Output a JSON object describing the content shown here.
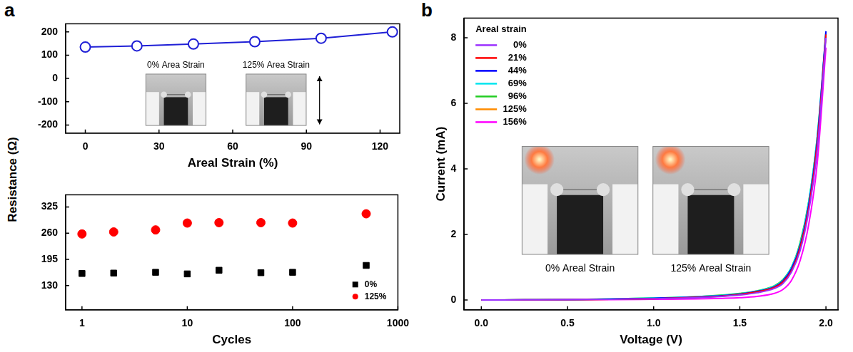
{
  "chart_data": [
    {
      "panel": "a",
      "type": "line",
      "xlabel": "Areal Strain (%)",
      "ylabel": "Resistance (Ω)",
      "x": [
        0,
        21,
        44,
        69,
        96,
        125
      ],
      "values": [
        135,
        140,
        148,
        158,
        173,
        200
      ],
      "color": "#1f1fd6",
      "marker": "open_circle",
      "annotations": [
        "0% Area Strain",
        "125% Area Strain"
      ],
      "xlim": [
        -8,
        128
      ],
      "xticks": [
        0,
        30,
        60,
        90,
        120
      ],
      "ylim": [
        -235,
        235
      ],
      "yticks": [
        -200,
        -100,
        0,
        100,
        200
      ],
      "grid": false
    },
    {
      "type": "scatter",
      "xlabel": "Cycles",
      "log": "x",
      "x": [
        1,
        2,
        5,
        10,
        20,
        50,
        100,
        500
      ],
      "series": [
        {
          "name": "0%",
          "color": "#000000",
          "marker": "square",
          "values": [
            160,
            161,
            163,
            159,
            168,
            162,
            163,
            180
          ]
        },
        {
          "name": "125%",
          "color": "#ff0000",
          "marker": "circle",
          "values": [
            258,
            263,
            268,
            285,
            286,
            286,
            285,
            308
          ]
        }
      ],
      "xlim": [
        0.7,
        1000
      ],
      "xticks": [
        1,
        10,
        100,
        1000
      ],
      "ylim": [
        70,
        355
      ],
      "yticks": [
        130,
        195,
        260,
        325
      ],
      "legend": "lower right",
      "grid": false
    },
    {
      "panel": "b",
      "type": "line",
      "xlabel": "Voltage (V)",
      "ylabel": "Current (mA)",
      "legend_title": "Areal strain",
      "x": [
        0,
        0.25,
        0.5,
        0.75,
        1,
        1.25,
        1.4,
        1.5,
        1.6,
        1.7,
        1.75,
        1.8,
        1.85,
        1.9,
        1.95,
        2
      ],
      "series": [
        {
          "name": "0%",
          "color": "#9b30ff",
          "values": [
            0,
            0.005,
            0.01,
            0.02,
            0.04,
            0.07,
            0.11,
            0.15,
            0.22,
            0.35,
            0.5,
            0.85,
            1.5,
            2.7,
            4.6,
            8.0
          ]
        },
        {
          "name": "21%",
          "color": "#ff0000",
          "values": [
            0,
            0.005,
            0.01,
            0.02,
            0.04,
            0.08,
            0.12,
            0.17,
            0.25,
            0.38,
            0.55,
            0.9,
            1.6,
            2.8,
            4.8,
            8.1
          ]
        },
        {
          "name": "44%",
          "color": "#0000ff",
          "values": [
            0,
            0.005,
            0.01,
            0.025,
            0.05,
            0.09,
            0.13,
            0.18,
            0.26,
            0.4,
            0.58,
            0.95,
            1.65,
            2.9,
            4.9,
            8.2
          ]
        },
        {
          "name": "69%",
          "color": "#00e5ee",
          "values": [
            0,
            0.005,
            0.01,
            0.03,
            0.06,
            0.1,
            0.14,
            0.19,
            0.27,
            0.42,
            0.6,
            1.0,
            1.7,
            3.0,
            5.0,
            8.2
          ]
        },
        {
          "name": "96%",
          "color": "#22cc22",
          "values": [
            0,
            0.005,
            0.015,
            0.03,
            0.06,
            0.1,
            0.15,
            0.2,
            0.28,
            0.43,
            0.62,
            1.0,
            1.75,
            3.0,
            5.0,
            8.1
          ]
        },
        {
          "name": "125%",
          "color": "#ff8c00",
          "values": [
            0,
            0.005,
            0.01,
            0.02,
            0.05,
            0.08,
            0.12,
            0.16,
            0.24,
            0.37,
            0.54,
            0.9,
            1.6,
            2.85,
            4.8,
            8.1
          ]
        },
        {
          "name": "156%",
          "color": "#ff00ff",
          "values": [
            0,
            0.002,
            0.005,
            0.01,
            0.02,
            0.03,
            0.05,
            0.07,
            0.11,
            0.2,
            0.32,
            0.6,
            1.2,
            2.3,
            4.2,
            7.7
          ]
        }
      ],
      "annotations": [
        "0% Areal Strain",
        "125% Areal Strain"
      ],
      "xlim": [
        -0.1,
        2.07
      ],
      "xticks": [
        {
          "value": 0,
          "label": "0.0"
        },
        {
          "value": 0.5,
          "label": "0.5"
        },
        {
          "value": 1,
          "label": "1.0"
        },
        {
          "value": 1.5,
          "label": "1.5"
        },
        {
          "value": 2,
          "label": "2.0"
        }
      ],
      "ylim": [
        -0.3,
        8.6
      ],
      "yticks": [
        0,
        2,
        4,
        6,
        8
      ],
      "legend": "upper left",
      "grid": false
    }
  ]
}
